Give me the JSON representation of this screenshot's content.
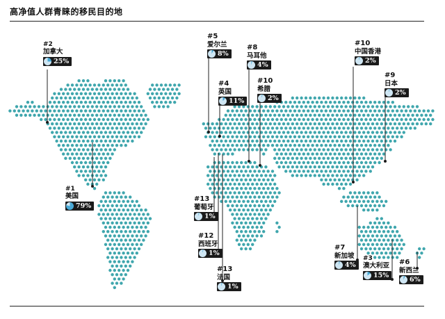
{
  "title": "高净值人群青睐的移民目的地",
  "colors": {
    "dot": "#3fa6ad",
    "dark": "#1a1a1a",
    "pie_fill": "#4aa9d6",
    "pie_rest": "#cfe6f3",
    "line": "#222222"
  },
  "destinations": [
    {
      "rank": "#2",
      "country": "加拿大",
      "percent": "25%",
      "value": 25
    },
    {
      "rank": "#1",
      "country": "美国",
      "percent": "79%",
      "value": 79
    },
    {
      "rank": "#5",
      "country": "爱尔兰",
      "percent": "8%",
      "value": 8
    },
    {
      "rank": "#8",
      "country": "马耳他",
      "percent": "4%",
      "value": 4
    },
    {
      "rank": "#4",
      "country": "英国",
      "percent": "11%",
      "value": 11
    },
    {
      "rank": "#10",
      "country": "希腊",
      "percent": "2%",
      "value": 2
    },
    {
      "rank": "#10",
      "country": "中国香港",
      "percent": "2%",
      "value": 2
    },
    {
      "rank": "#9",
      "country": "日本",
      "percent": "2%",
      "value": 2
    },
    {
      "rank": "#13",
      "country": "葡萄牙",
      "percent": "1%",
      "value": 1
    },
    {
      "rank": "#12",
      "country": "西班牙",
      "percent": "1%",
      "value": 1
    },
    {
      "rank": "#13",
      "country": "法国",
      "percent": "1%",
      "value": 1
    },
    {
      "rank": "#7",
      "country": "新加坡",
      "percent": "4%",
      "value": 4
    },
    {
      "rank": "#3",
      "country": "澳大利亚",
      "percent": "15%",
      "value": 15
    },
    {
      "rank": "#6",
      "country": "新西兰",
      "percent": "6%",
      "value": 6
    }
  ]
}
